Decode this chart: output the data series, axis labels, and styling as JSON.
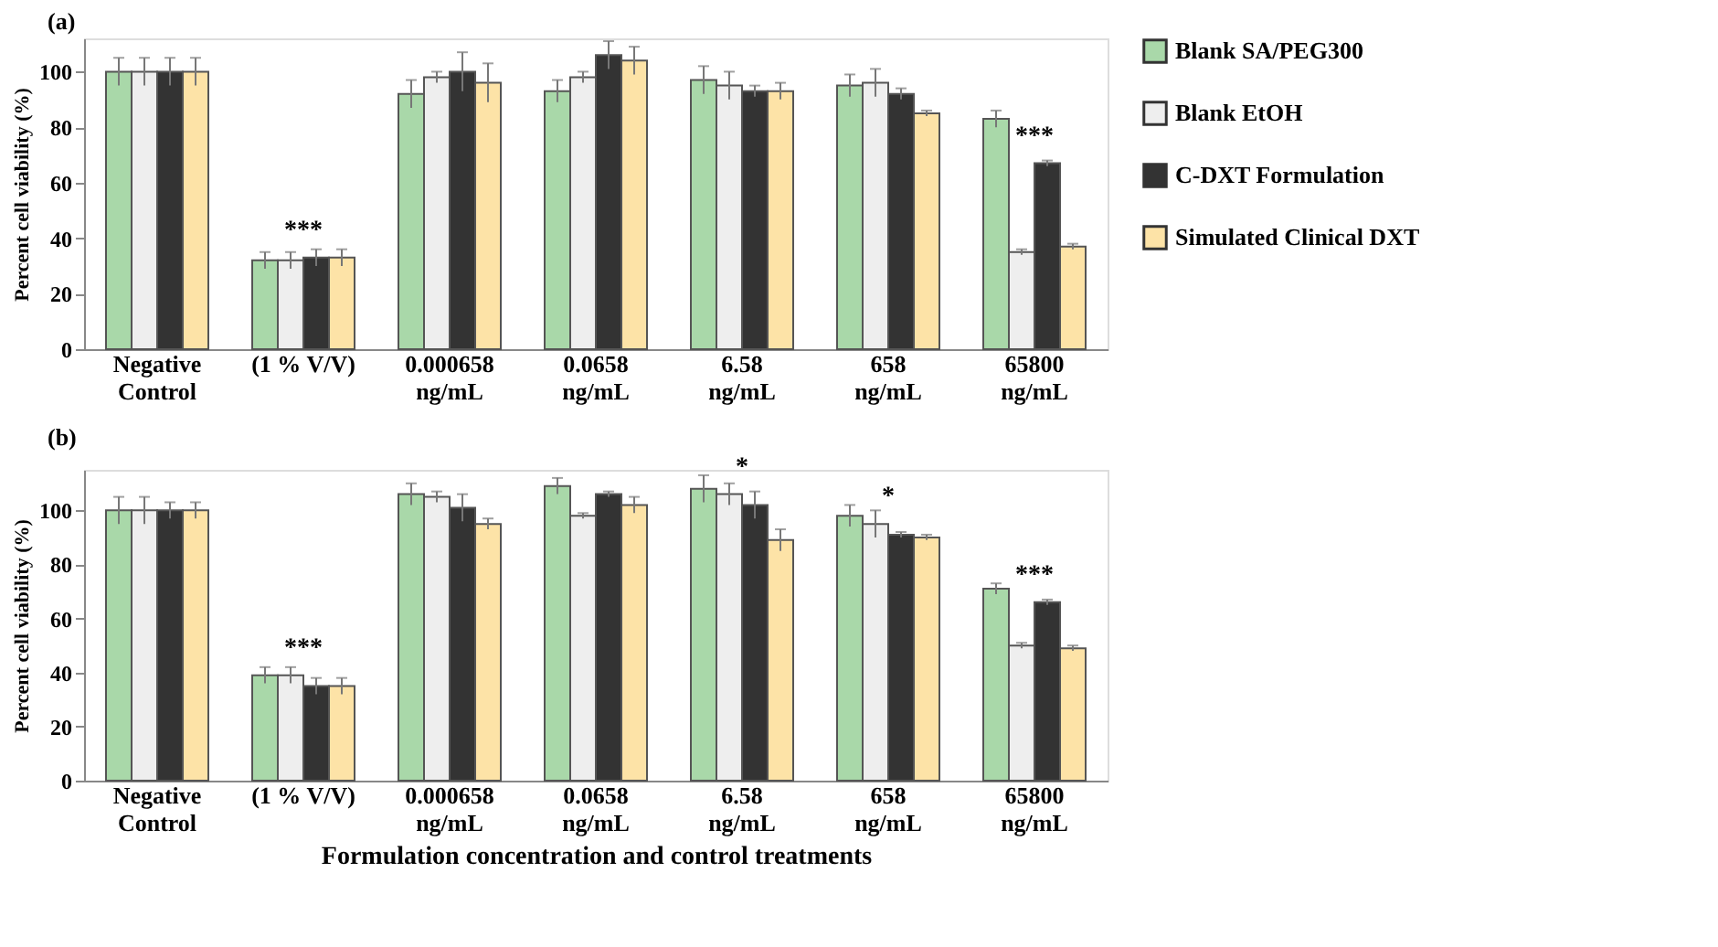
{
  "chart_data": [
    {
      "type": "bar",
      "title": "(a)",
      "ylabel": "Percent cell viability (%)",
      "categories": [
        "Negative\nControl",
        "(1 % V/V)",
        "0.000658\nng/mL",
        "0.0658\nng/mL",
        "6.58\nng/mL",
        "658\nng/mL",
        "65800\nng/mL"
      ],
      "series": [
        {
          "name": "Blank SA/PEG300",
          "color": "#a9d8a9",
          "values": [
            100,
            32,
            92,
            93,
            97,
            95,
            83
          ],
          "errors": [
            5,
            3,
            5,
            4,
            5,
            4,
            3
          ]
        },
        {
          "name": "Blank EtOH",
          "color": "#eeeeee",
          "values": [
            100,
            32,
            98,
            98,
            95,
            96,
            35
          ],
          "errors": [
            5,
            3,
            2,
            2,
            5,
            5,
            1
          ]
        },
        {
          "name": "C-DXT Formulation",
          "color": "#333333",
          "values": [
            100,
            33,
            100,
            106,
            93,
            92,
            67
          ],
          "errors": [
            5,
            3,
            7,
            5,
            2,
            2,
            1
          ]
        },
        {
          "name": "Simulated Clinical DXT",
          "color": "#fde3a7",
          "values": [
            100,
            33,
            96,
            104,
            93,
            85,
            37
          ],
          "errors": [
            5,
            3,
            7,
            5,
            3,
            1,
            1
          ]
        }
      ],
      "ylim": [
        0,
        112
      ],
      "yticks": [
        0,
        20,
        40,
        60,
        80,
        100
      ],
      "grid": false,
      "legend": "right",
      "annotations": [
        {
          "text": "***",
          "x": "(1 % V/V)",
          "y": 33
        },
        {
          "text": "***",
          "x": "65800\nng/mL",
          "y": 67
        }
      ]
    },
    {
      "type": "bar",
      "title": "(b)",
      "ylabel": "Percent cell viability (%)",
      "xlabel": "Formulation concentration and control treatments",
      "categories": [
        "Negative\nControl",
        "(1 % V/V)",
        "0.000658\nng/mL",
        "0.0658\nng/mL",
        "6.58\nng/mL",
        "658\nng/mL",
        "65800\nng/mL"
      ],
      "series": [
        {
          "name": "Blank SA/PEG300",
          "color": "#a9d8a9",
          "values": [
            100,
            39,
            106,
            109,
            108,
            98,
            71
          ],
          "errors": [
            5,
            3,
            4,
            3,
            5,
            4,
            2
          ]
        },
        {
          "name": "Blank EtOH",
          "color": "#eeeeee",
          "values": [
            100,
            39,
            105,
            98,
            106,
            95,
            50
          ],
          "errors": [
            5,
            3,
            2,
            1,
            4,
            5,
            1
          ]
        },
        {
          "name": "C-DXT Formulation",
          "color": "#333333",
          "values": [
            100,
            35,
            101,
            106,
            102,
            91,
            66
          ],
          "errors": [
            3,
            3,
            5,
            1,
            5,
            1,
            1
          ]
        },
        {
          "name": "Simulated Clinical DXT",
          "color": "#fde3a7",
          "values": [
            100,
            35,
            95,
            102,
            89,
            90,
            49
          ],
          "errors": [
            3,
            3,
            2,
            3,
            4,
            1,
            1
          ]
        }
      ],
      "ylim": [
        0,
        115
      ],
      "yticks": [
        0,
        20,
        40,
        60,
        80,
        100
      ],
      "grid": false,
      "legend": "right",
      "annotations": [
        {
          "text": "***",
          "x": "(1 % V/V)",
          "y": 39
        },
        {
          "text": "*",
          "x": "6.58\nng/mL",
          "y": 106
        },
        {
          "text": "*",
          "x": "658\nng/mL",
          "y": 95
        },
        {
          "text": "***",
          "x": "65800\nng/mL",
          "y": 66
        }
      ]
    }
  ]
}
